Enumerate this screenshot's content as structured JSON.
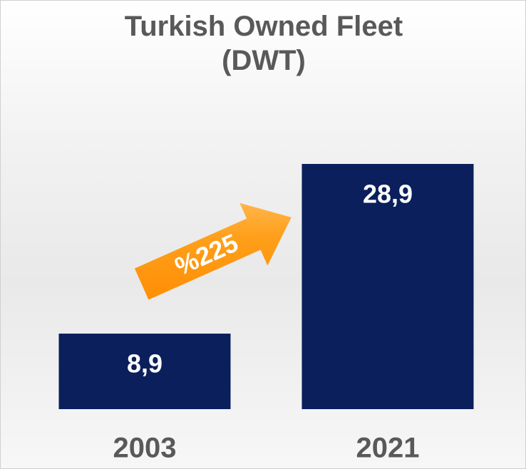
{
  "chart_data": {
    "type": "bar",
    "title": "Turkish Owned Fleet (DWT)",
    "categories": [
      "2003",
      "2021"
    ],
    "values": [
      8.9,
      28.9
    ],
    "value_labels": [
      "8,9",
      "28,9"
    ],
    "color": "#0a1f5c",
    "annotation": "%225"
  }
}
